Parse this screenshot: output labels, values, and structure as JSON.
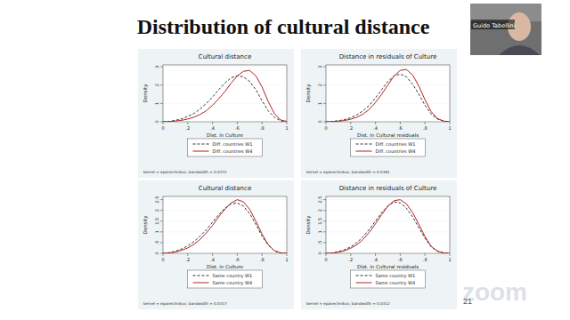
{
  "slide": {
    "title": "Distribution of cultural distance",
    "speaker": "Guido Tabellini",
    "page": "21",
    "watermark": "zoom"
  },
  "chart_data": [
    {
      "type": "line",
      "title": "Cultural distance",
      "x_label": "Dist. in Culture",
      "y_label": "Density",
      "note": "kernel = epanechnikov, bandwidth = 0.0372",
      "legend": "bottom",
      "x": [
        0,
        0.05,
        0.1,
        0.15,
        0.2,
        0.25,
        0.3,
        0.35,
        0.4,
        0.45,
        0.5,
        0.55,
        0.6,
        0.65,
        0.7,
        0.75,
        0.8,
        0.85,
        0.9,
        0.95,
        1
      ],
      "xlim": [
        0,
        1
      ],
      "ylim": [
        0,
        3.1
      ],
      "xticks": [
        0,
        {
          "value": 0.2,
          "label": ".2"
        },
        {
          "value": 0.4,
          "label": ".4"
        },
        {
          "value": 0.6,
          "label": ".6"
        },
        {
          "value": 0.8,
          "label": ".8"
        },
        1
      ],
      "yticks": [
        0,
        1,
        2,
        3
      ],
      "series": [
        {
          "name": "Diff. countries W1",
          "color": "#333333",
          "line_style": "dash",
          "values": [
            0,
            0.02,
            0.08,
            0.15,
            0.3,
            0.45,
            0.7,
            1.0,
            1.35,
            1.75,
            2.1,
            2.4,
            2.5,
            2.45,
            2.2,
            1.75,
            1.15,
            0.6,
            0.25,
            0.05,
            0
          ]
        },
        {
          "name": "Diff. countries W4",
          "color": "#b22222",
          "line_style": "solid",
          "values": [
            0,
            0.01,
            0.04,
            0.08,
            0.15,
            0.25,
            0.4,
            0.6,
            0.9,
            1.25,
            1.65,
            2.1,
            2.5,
            2.75,
            2.8,
            2.5,
            1.9,
            1.1,
            0.45,
            0.1,
            0.02
          ]
        }
      ]
    },
    {
      "type": "line",
      "title": "Distance in residuals of Culture",
      "x_label": "Dist. in Cultural residuals",
      "y_label": "Density",
      "note": "kernel = epanechnikov, bandwidth = 0.0361",
      "legend": "bottom",
      "x": [
        0,
        0.05,
        0.1,
        0.15,
        0.2,
        0.25,
        0.3,
        0.35,
        0.4,
        0.45,
        0.5,
        0.55,
        0.6,
        0.65,
        0.7,
        0.75,
        0.8,
        0.85,
        0.9,
        0.95,
        1
      ],
      "xlim": [
        0,
        1
      ],
      "ylim": [
        0,
        3.1
      ],
      "xticks": [
        0,
        {
          "value": 0.2,
          "label": ".2"
        },
        {
          "value": 0.4,
          "label": ".4"
        },
        {
          "value": 0.6,
          "label": ".6"
        },
        {
          "value": 0.8,
          "label": ".8"
        },
        1
      ],
      "yticks": [
        0,
        1,
        2,
        3
      ],
      "series": [
        {
          "name": "Diff. countries W1",
          "color": "#333333",
          "line_style": "dash",
          "values": [
            0,
            0.02,
            0.06,
            0.12,
            0.22,
            0.38,
            0.6,
            0.9,
            1.3,
            1.75,
            2.2,
            2.5,
            2.6,
            2.45,
            2.05,
            1.5,
            0.9,
            0.42,
            0.15,
            0.03,
            0
          ]
        },
        {
          "name": "Diff. countries W4",
          "color": "#b22222",
          "line_style": "solid",
          "values": [
            0,
            0.01,
            0.03,
            0.07,
            0.14,
            0.25,
            0.42,
            0.68,
            1.05,
            1.5,
            2.0,
            2.5,
            2.8,
            2.85,
            2.55,
            1.95,
            1.2,
            0.55,
            0.18,
            0.04,
            0
          ]
        }
      ]
    },
    {
      "type": "line",
      "title": "Cultural distance",
      "x_label": "Dist. in Culture",
      "y_label": "Density",
      "note": "kernel = epanechnikov, bandwidth = 0.0317",
      "legend": "bottom",
      "x": [
        0,
        0.05,
        0.1,
        0.15,
        0.2,
        0.25,
        0.3,
        0.35,
        0.4,
        0.45,
        0.5,
        0.55,
        0.6,
        0.65,
        0.7,
        0.75,
        0.8,
        0.85,
        0.9,
        0.95,
        1
      ],
      "xlim": [
        0,
        1
      ],
      "ylim": [
        0,
        2.65
      ],
      "xticks": [
        0,
        {
          "value": 0.2,
          "label": ".2"
        },
        {
          "value": 0.4,
          "label": ".4"
        },
        {
          "value": 0.6,
          "label": ".6"
        },
        {
          "value": 0.8,
          "label": ".8"
        },
        1
      ],
      "yticks": [
        0,
        {
          "value": 0.5,
          "label": ".5"
        },
        1,
        1.5,
        2,
        2.5
      ],
      "series": [
        {
          "name": "Same country W1",
          "color": "#333333",
          "line_style": "dash",
          "values": [
            0,
            0.03,
            0.1,
            0.2,
            0.35,
            0.55,
            0.8,
            1.1,
            1.45,
            1.8,
            2.1,
            2.3,
            2.35,
            2.2,
            1.85,
            1.35,
            0.8,
            0.38,
            0.12,
            0.02,
            0
          ]
        },
        {
          "name": "Same country W4",
          "color": "#b22222",
          "line_style": "solid",
          "values": [
            0,
            0.02,
            0.06,
            0.14,
            0.25,
            0.42,
            0.65,
            0.95,
            1.3,
            1.7,
            2.05,
            2.35,
            2.5,
            2.4,
            2.05,
            1.5,
            0.9,
            0.4,
            0.12,
            0.02,
            0
          ]
        }
      ]
    },
    {
      "type": "line",
      "title": "Distance in residuals of Culture",
      "x_label": "Dist. in Cultural residuals",
      "y_label": "Density",
      "note": "kernel = epanechnikov, bandwidth = 0.0312",
      "legend": "bottom",
      "x": [
        0,
        0.05,
        0.1,
        0.15,
        0.2,
        0.25,
        0.3,
        0.35,
        0.4,
        0.45,
        0.5,
        0.55,
        0.6,
        0.65,
        0.7,
        0.75,
        0.8,
        0.85,
        0.9,
        0.95,
        1
      ],
      "xlim": [
        0,
        1
      ],
      "ylim": [
        0,
        2.65
      ],
      "xticks": [
        0,
        {
          "value": 0.2,
          "label": ".2"
        },
        {
          "value": 0.4,
          "label": ".4"
        },
        {
          "value": 0.6,
          "label": ".6"
        },
        {
          "value": 0.8,
          "label": ".8"
        },
        1
      ],
      "yticks": [
        0,
        {
          "value": 0.5,
          "label": ".5"
        },
        1,
        1.5,
        2,
        2.5
      ],
      "series": [
        {
          "name": "Same country W1",
          "color": "#333333",
          "line_style": "dash",
          "values": [
            0,
            0.02,
            0.08,
            0.17,
            0.3,
            0.5,
            0.78,
            1.12,
            1.5,
            1.9,
            2.2,
            2.4,
            2.35,
            2.1,
            1.7,
            1.2,
            0.7,
            0.3,
            0.1,
            0.02,
            0
          ]
        },
        {
          "name": "Same country W4",
          "color": "#b22222",
          "line_style": "solid",
          "values": [
            0,
            0.01,
            0.05,
            0.12,
            0.24,
            0.4,
            0.65,
            0.98,
            1.38,
            1.8,
            2.2,
            2.45,
            2.5,
            2.3,
            1.9,
            1.35,
            0.78,
            0.33,
            0.1,
            0.02,
            0
          ]
        }
      ]
    }
  ]
}
